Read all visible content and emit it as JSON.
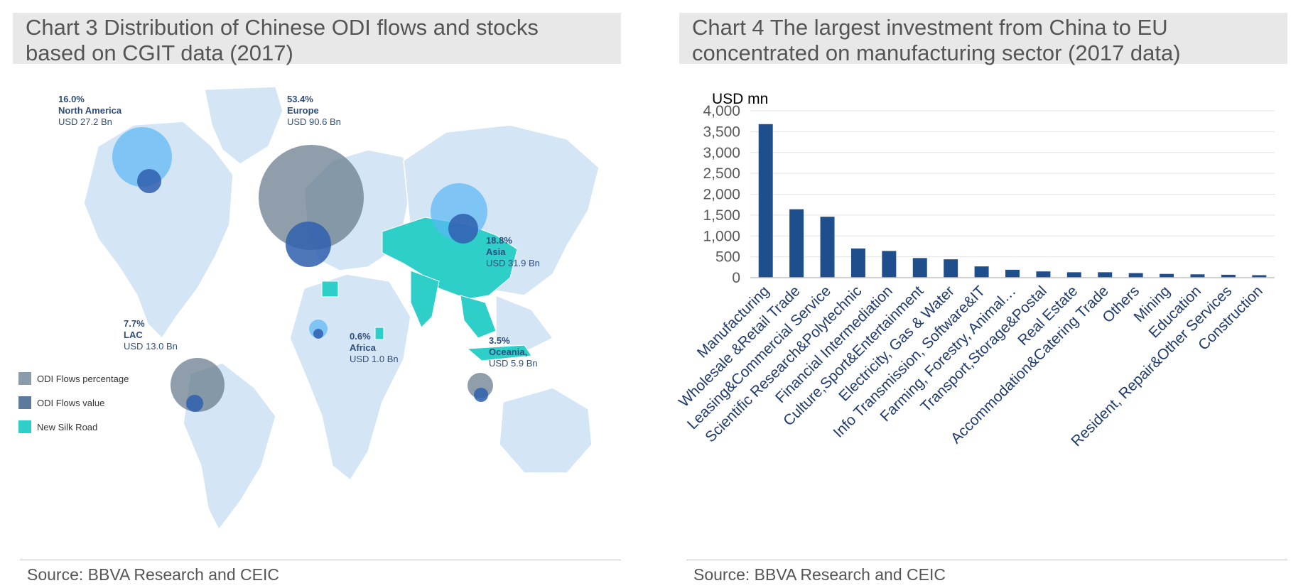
{
  "left_panel": {
    "title_line1": "Chart 3 Distribution of Chinese ODI flows and stocks",
    "title_line2": "based on CGIT data (2017)",
    "source": "Source: BBVA Research and CEIC",
    "regions": [
      {
        "pct": "16.0%",
        "name": "North America",
        "value": "USD 27.2 Bn"
      },
      {
        "pct": "53.4%",
        "name": "Europe",
        "value": "USD 90.6 Bn"
      },
      {
        "pct": "18.8%",
        "name": "Asia",
        "value": "USD 31.9 Bn"
      },
      {
        "pct": "7.7%",
        "name": "LAC",
        "value": "USD 13.0 Bn"
      },
      {
        "pct": "0.6%",
        "name": "Africa",
        "value": "USD 1.0 Bn"
      },
      {
        "pct": "3.5%",
        "name": "Oceania,",
        "value": "USD 5.9 Bn"
      }
    ],
    "legend": [
      {
        "label": "ODI Flows percentage",
        "color": "#8a9cac"
      },
      {
        "label": "ODI Flows value",
        "color": "#5b7a9c"
      },
      {
        "label": "New Silk Road",
        "color": "#2fcfc9"
      }
    ]
  },
  "right_panel": {
    "title_line1": "Chart 4 The largest investment from China to EU",
    "title_line2": "concentrated on manufacturing sector (2017 data)",
    "source": "Source: BBVA Research and CEIC"
  },
  "chart_data": {
    "type": "bar",
    "title": "Chart 4 The largest investment from China to EU concentrated on manufacturing sector (2017 data)",
    "ylabel": "USD mn",
    "ylim": [
      0,
      4000
    ],
    "yticks": [
      0,
      500,
      1000,
      1500,
      2000,
      2500,
      3000,
      3500,
      4000
    ],
    "ytick_labels": [
      "0",
      "500",
      "1,000",
      "1,500",
      "2,000",
      "2,500",
      "3,000",
      "3,500",
      "4,000"
    ],
    "grid": true,
    "bar_color": "#1f4e8c",
    "categories": [
      "Manufacturing",
      "Wholesale &Retail Trade",
      "Leasing&Commercial Service",
      "Scientific Research&Polytechnic",
      "Financial Intermediation",
      "Culture,Sport&Entertainment",
      "Electricity, Gas & Water",
      "Info Transmission, Software&IT",
      "Farming, Forestry, Animal…",
      "Transport,Storage&Postal",
      "Real Estate",
      "Accommodation&Catering Trade",
      "Others",
      "Mining",
      "Education",
      "Resident, Repair&Other Services",
      "Construction"
    ],
    "values": [
      3680,
      1640,
      1460,
      700,
      640,
      470,
      440,
      270,
      190,
      150,
      130,
      130,
      110,
      90,
      80,
      70,
      60
    ]
  }
}
